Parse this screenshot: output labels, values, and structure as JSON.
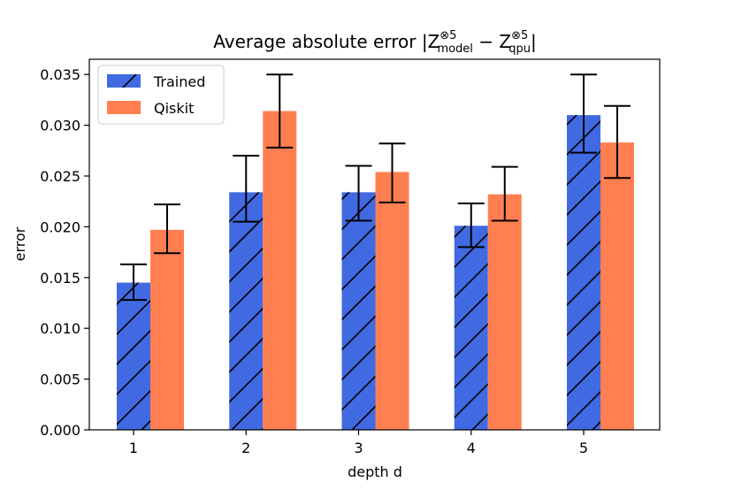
{
  "chart_data": {
    "type": "bar",
    "title": {
      "prefix": "Average absolute error |Z",
      "sup1": "⊗5",
      "sub1": "model",
      "minus": " − Z",
      "sup2": "⊗5",
      "sub2": "qpu",
      "suffix": "|"
    },
    "xlabel": "depth d",
    "ylabel": "error",
    "categories": [
      "1",
      "2",
      "3",
      "4",
      "5"
    ],
    "ylim": [
      0,
      0.0365
    ],
    "yticks": [
      "0.000",
      "0.005",
      "0.010",
      "0.015",
      "0.020",
      "0.025",
      "0.030",
      "0.035"
    ],
    "ytick_values": [
      0,
      0.005,
      0.01,
      0.015,
      0.02,
      0.025,
      0.03,
      0.035
    ],
    "legend_position": "top-left",
    "series": [
      {
        "name": "Trained",
        "color": "#4169e1",
        "hatch": "diagonal",
        "values": [
          0.0145,
          0.0234,
          0.0234,
          0.0201,
          0.031
        ],
        "err_low": [
          0.0128,
          0.0205,
          0.0206,
          0.018,
          0.0273
        ],
        "err_high": [
          0.0163,
          0.027,
          0.026,
          0.0223,
          0.035
        ]
      },
      {
        "name": "Qiskit",
        "color": "#ff7f50",
        "hatch": "none",
        "values": [
          0.0197,
          0.0314,
          0.0254,
          0.0232,
          0.0283
        ],
        "err_low": [
          0.0174,
          0.0278,
          0.0224,
          0.0206,
          0.0248
        ],
        "err_high": [
          0.0222,
          0.035,
          0.0282,
          0.0259,
          0.0319
        ]
      }
    ]
  }
}
